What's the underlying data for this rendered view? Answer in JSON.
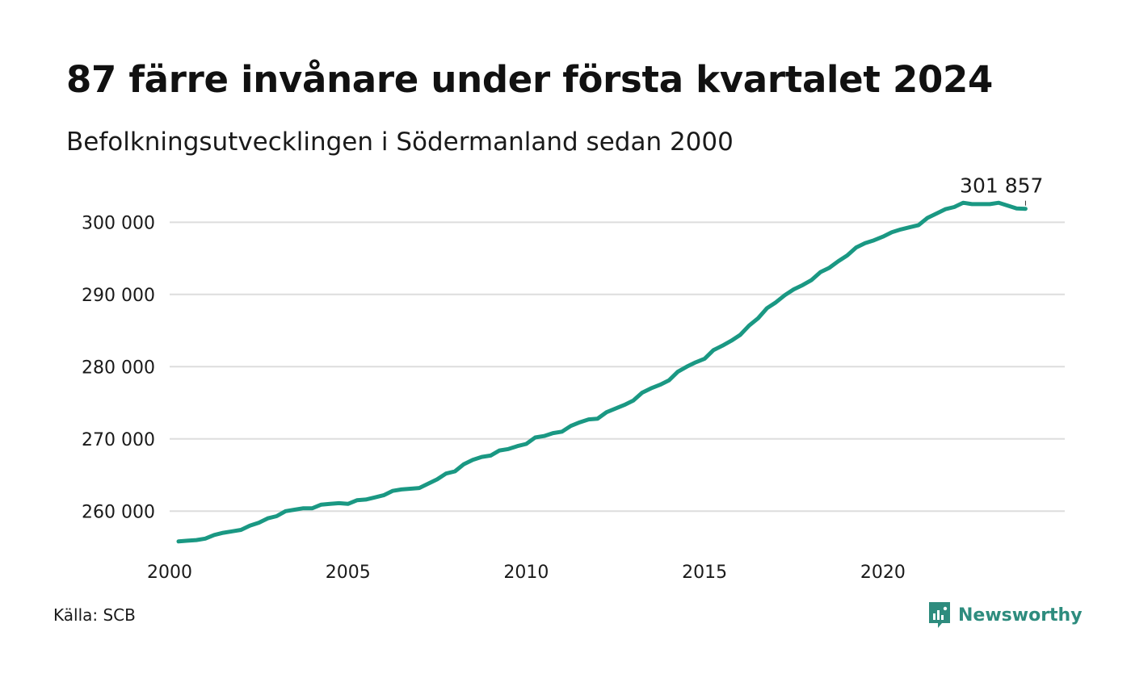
{
  "header": {
    "title": "87 färre invånare under första kvartalet 2024",
    "subtitle": "Befolkningsutvecklingen i Södermanland sedan 2000"
  },
  "footer": {
    "source": "Källa: SCB",
    "brand": "Newsworthy"
  },
  "colors": {
    "line": "#1a9883",
    "grid": "#dddddd",
    "brand": "#2e8c7e"
  },
  "icons": {
    "brand_logo": "chart-bubble-icon"
  },
  "chart_data": {
    "type": "line",
    "title": "87 färre invånare under första kvartalet 2024",
    "subtitle": "Befolkningsutvecklingen i Södermanland sedan 2000",
    "xlabel": "",
    "ylabel": "",
    "x_ticks": [
      "2000",
      "2005",
      "2010",
      "2015",
      "2020"
    ],
    "y_ticks": [
      "260 000",
      "270 000",
      "280 000",
      "290 000",
      "300 000"
    ],
    "xlim": [
      2000,
      2025.1
    ],
    "ylim": [
      255000,
      303500
    ],
    "grid": true,
    "end_label": "301 857",
    "series": [
      {
        "x": [
          2000.25,
          2000.5,
          2000.75,
          2001,
          2001.25,
          2001.5,
          2001.75,
          2002,
          2002.25,
          2002.5,
          2002.75,
          2003,
          2003.25,
          2003.5,
          2003.75,
          2004,
          2004.25,
          2004.5,
          2004.75,
          2005,
          2005.25,
          2005.5,
          2005.75,
          2006,
          2006.25,
          2006.5,
          2006.75,
          2007,
          2007.25,
          2007.5,
          2007.75,
          2008,
          2008.25,
          2008.5,
          2008.75,
          2009,
          2009.25,
          2009.5,
          2009.75,
          2010,
          2010.25,
          2010.5,
          2010.75,
          2011,
          2011.25,
          2011.5,
          2011.75,
          2012,
          2012.25,
          2012.5,
          2012.75,
          2013,
          2013.25,
          2013.5,
          2013.75,
          2014,
          2014.25,
          2014.5,
          2014.75,
          2015,
          2015.25,
          2015.5,
          2015.75,
          2016,
          2016.25,
          2016.5,
          2016.75,
          2017,
          2017.25,
          2017.5,
          2017.75,
          2018,
          2018.25,
          2018.5,
          2018.75,
          2019,
          2019.25,
          2019.5,
          2019.75,
          2020,
          2020.25,
          2020.5,
          2020.75,
          2021,
          2021.25,
          2021.5,
          2021.75,
          2022,
          2022.25,
          2022.5,
          2022.75,
          2023,
          2023.25,
          2023.5,
          2023.75,
          2024
        ],
        "values": [
          255800,
          255900,
          256000,
          256200,
          256700,
          257000,
          257200,
          257400,
          258000,
          258400,
          259000,
          259300,
          260000,
          260200,
          260400,
          260400,
          260900,
          261000,
          261100,
          261000,
          261500,
          261600,
          261900,
          262200,
          262800,
          263000,
          263100,
          263200,
          263800,
          264400,
          265200,
          265500,
          266500,
          267100,
          267500,
          267700,
          268400,
          268600,
          269000,
          269300,
          270200,
          270400,
          270800,
          271000,
          271800,
          272300,
          272700,
          272800,
          273700,
          274200,
          274700,
          275300,
          276400,
          277000,
          277500,
          278100,
          279300,
          280000,
          280600,
          281100,
          282300,
          282900,
          283600,
          284400,
          285700,
          286700,
          288100,
          288900,
          289900,
          290700,
          291300,
          292000,
          293100,
          293700,
          294600,
          295400,
          296500,
          297100,
          297500,
          298000,
          298600,
          299000,
          299300,
          299600,
          300600,
          301200,
          301800,
          302100,
          302700,
          302500,
          302500,
          302500,
          302700,
          302300,
          301900,
          301857
        ]
      }
    ]
  }
}
